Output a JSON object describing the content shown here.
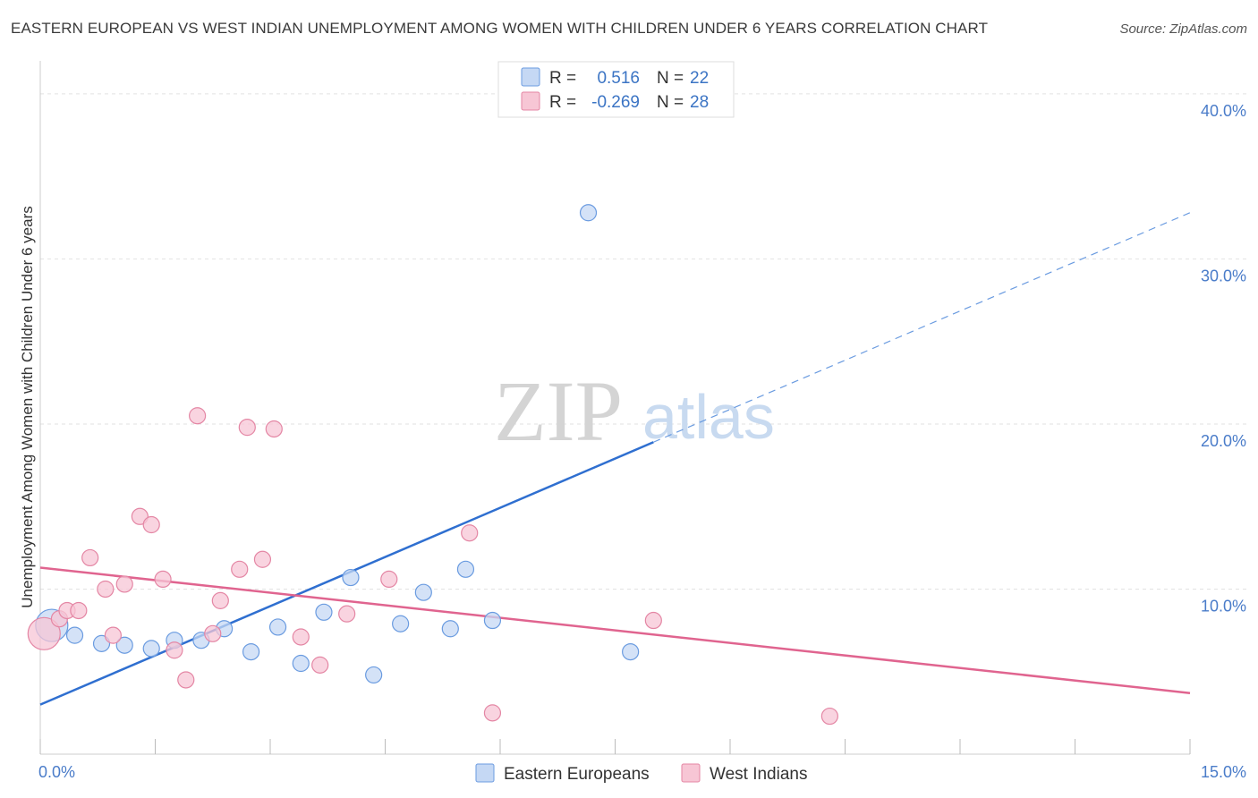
{
  "title": "EASTERN EUROPEAN VS WEST INDIAN UNEMPLOYMENT AMONG WOMEN WITH CHILDREN UNDER 6 YEARS CORRELATION CHART",
  "source": "Source: ZipAtlas.com",
  "watermark": {
    "zip": "ZIP",
    "atlas": "atlas"
  },
  "chart_data": {
    "type": "scatter",
    "xlabel": "",
    "ylabel": "Unemployment Among Women with Children Under 6 years",
    "xlim": [
      0,
      15
    ],
    "ylim": [
      0,
      42
    ],
    "x_tick_labels": {
      "min": "0.0%",
      "max": "15.0%"
    },
    "y_ticks": [
      {
        "value": 10,
        "label": "10.0%"
      },
      {
        "value": 20,
        "label": "20.0%"
      },
      {
        "value": 30,
        "label": "30.0%"
      },
      {
        "value": 40,
        "label": "40.0%"
      }
    ],
    "grid": true,
    "legend_position": "top-center",
    "series": [
      {
        "name": "Eastern Europeans",
        "color": "#6a9be0",
        "fill": "#c5d8f4",
        "stats": {
          "r_label": "R =",
          "r": "0.516",
          "n_label": "N =",
          "n": "22"
        },
        "trend": {
          "x0": 0,
          "y0": 3.0,
          "x1": 8.0,
          "y1": 18.9,
          "dash_to_x": 15.0,
          "dash_to_y": 32.8
        },
        "points": [
          {
            "x": 0.15,
            "y": 7.8,
            "big": true
          },
          {
            "x": 0.45,
            "y": 7.2
          },
          {
            "x": 0.8,
            "y": 6.7
          },
          {
            "x": 1.1,
            "y": 6.6
          },
          {
            "x": 1.45,
            "y": 6.4
          },
          {
            "x": 1.75,
            "y": 6.9
          },
          {
            "x": 2.1,
            "y": 6.9
          },
          {
            "x": 2.4,
            "y": 7.6
          },
          {
            "x": 2.75,
            "y": 6.2
          },
          {
            "x": 3.1,
            "y": 7.7
          },
          {
            "x": 3.4,
            "y": 5.5
          },
          {
            "x": 3.7,
            "y": 8.6
          },
          {
            "x": 4.05,
            "y": 10.7
          },
          {
            "x": 4.35,
            "y": 4.8
          },
          {
            "x": 4.7,
            "y": 7.9
          },
          {
            "x": 5.0,
            "y": 9.8
          },
          {
            "x": 5.35,
            "y": 7.6
          },
          {
            "x": 5.55,
            "y": 11.2
          },
          {
            "x": 5.9,
            "y": 8.1
          },
          {
            "x": 7.15,
            "y": 32.8
          },
          {
            "x": 7.7,
            "y": 6.2
          }
        ]
      },
      {
        "name": "West Indians",
        "color": "#e486a4",
        "fill": "#f7c6d5",
        "stats": {
          "r_label": "R =",
          "r": "-0.269",
          "n_label": "N =",
          "n": "28"
        },
        "trend": {
          "x0": 0,
          "y0": 11.3,
          "x1": 15.0,
          "y1": 3.7
        },
        "points": [
          {
            "x": 0.05,
            "y": 7.3,
            "big": true
          },
          {
            "x": 0.25,
            "y": 8.2
          },
          {
            "x": 0.35,
            "y": 8.7
          },
          {
            "x": 0.5,
            "y": 8.7
          },
          {
            "x": 0.65,
            "y": 11.9
          },
          {
            "x": 0.85,
            "y": 10.0
          },
          {
            "x": 0.95,
            "y": 7.2
          },
          {
            "x": 1.1,
            "y": 10.3
          },
          {
            "x": 1.3,
            "y": 14.4
          },
          {
            "x": 1.45,
            "y": 13.9
          },
          {
            "x": 1.6,
            "y": 10.6
          },
          {
            "x": 1.75,
            "y": 6.3
          },
          {
            "x": 1.9,
            "y": 4.5
          },
          {
            "x": 2.05,
            "y": 20.5
          },
          {
            "x": 2.25,
            "y": 7.3
          },
          {
            "x": 2.35,
            "y": 9.3
          },
          {
            "x": 2.6,
            "y": 11.2
          },
          {
            "x": 2.7,
            "y": 19.8
          },
          {
            "x": 2.9,
            "y": 11.8
          },
          {
            "x": 3.05,
            "y": 19.7
          },
          {
            "x": 3.4,
            "y": 7.1
          },
          {
            "x": 3.65,
            "y": 5.4
          },
          {
            "x": 4.0,
            "y": 8.5
          },
          {
            "x": 4.55,
            "y": 10.6
          },
          {
            "x": 5.6,
            "y": 13.4
          },
          {
            "x": 5.9,
            "y": 2.5
          },
          {
            "x": 8.0,
            "y": 8.1
          },
          {
            "x": 10.3,
            "y": 2.3
          }
        ]
      }
    ]
  }
}
